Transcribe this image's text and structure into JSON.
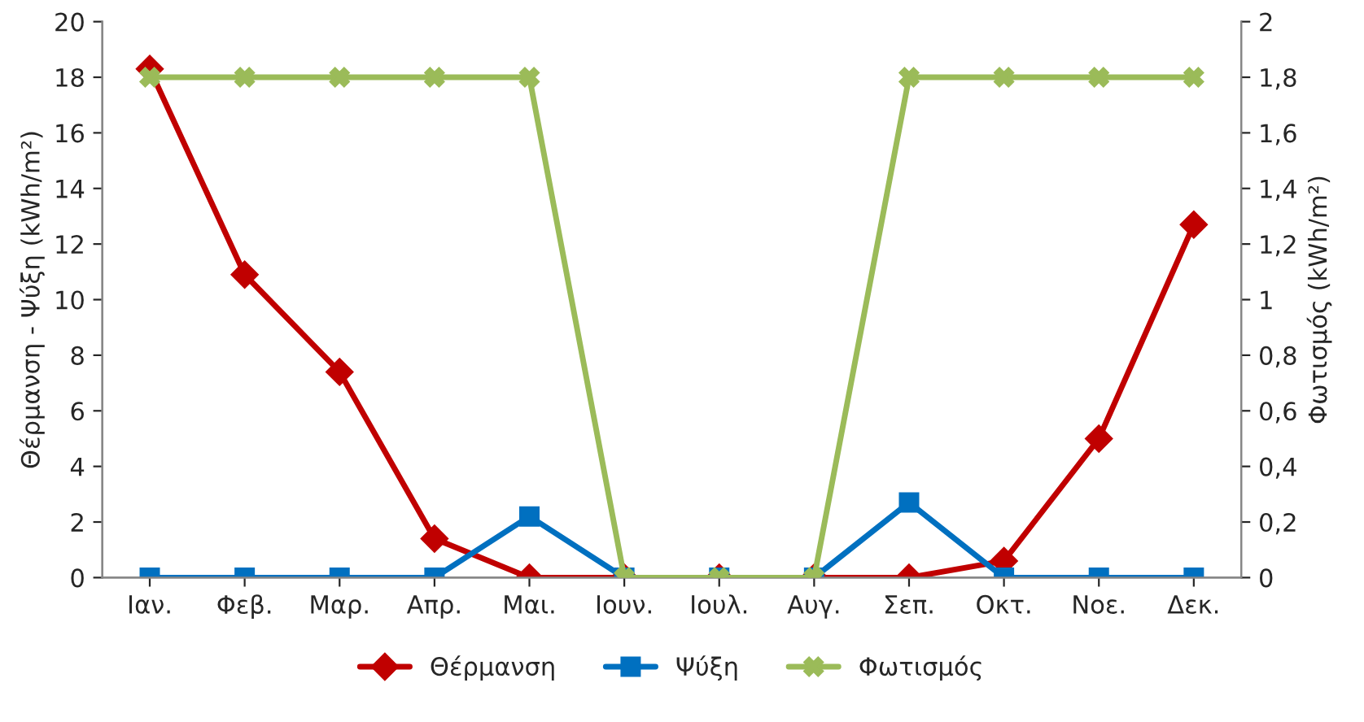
{
  "chart_data": {
    "type": "line",
    "categories": [
      "Ιαν.",
      "Φεβ.",
      "Μαρ.",
      "Απρ.",
      "Μαι.",
      "Ιουν.",
      "Ιουλ.",
      "Αυγ.",
      "Σεπ.",
      "Οκτ.",
      "Νοε.",
      "Δεκ."
    ],
    "series": [
      {
        "name": "Θέρμανση",
        "color": "#c00000",
        "marker": "diamond",
        "values": [
          18.3,
          10.9,
          7.4,
          1.4,
          0,
          0,
          0,
          0,
          0,
          0.6,
          5.0,
          12.7
        ]
      },
      {
        "name": "Ψύξη",
        "color": "#0070c0",
        "marker": "square",
        "values": [
          0,
          0,
          0,
          0,
          2.2,
          0,
          0,
          0,
          2.7,
          0,
          0,
          0
        ]
      },
      {
        "name": "Φωτισμός",
        "color": "#9bbb59",
        "marker": "cross",
        "axis": "y2",
        "values": [
          1.8,
          1.8,
          1.8,
          1.8,
          1.8,
          0,
          0,
          0,
          1.8,
          1.8,
          1.8,
          1.8
        ]
      }
    ],
    "ylabel": "Θέρμανση - Ψύξη (kWh/m²)",
    "y2label": "Φωτισμός (kWh/m²)",
    "ylim": [
      0,
      20
    ],
    "yticks": [
      0,
      2,
      4,
      6,
      8,
      10,
      12,
      14,
      16,
      18,
      20
    ],
    "y2lim": [
      0,
      2
    ],
    "y2ticks": [
      0,
      {
        "value": 0.2,
        "label": "0,2"
      },
      {
        "value": 0.4,
        "label": "0,4"
      },
      {
        "value": 0.6,
        "label": "0,6"
      },
      {
        "value": 0.8,
        "label": "0,8"
      },
      1,
      {
        "value": 1.2,
        "label": "1,2"
      },
      {
        "value": 1.4,
        "label": "1,4"
      },
      {
        "value": 1.6,
        "label": "1,6"
      },
      {
        "value": 1.8,
        "label": "1,8"
      },
      2
    ],
    "legend": "bottom",
    "grid": false
  }
}
